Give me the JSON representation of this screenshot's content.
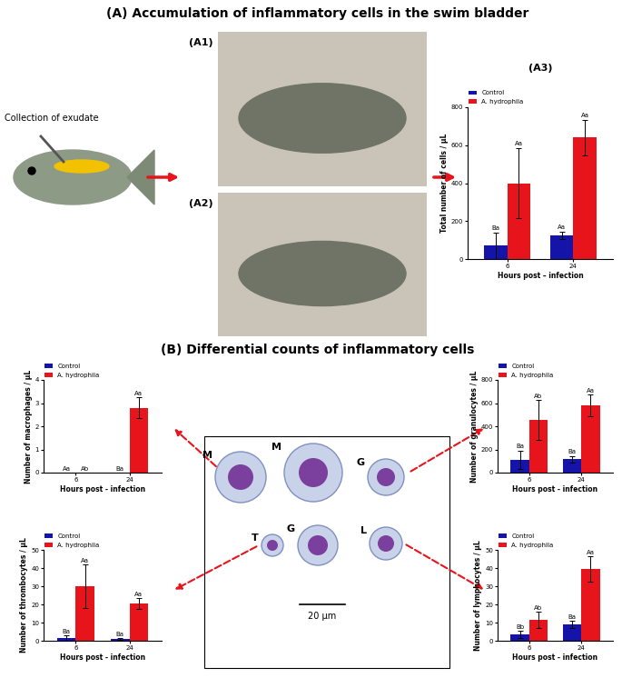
{
  "title_a": "(A) Accumulation of inflammatory cells in the swim bladder",
  "collection_label": "Collection of exudate",
  "photo_labels": [
    "(A1)",
    "(A2)"
  ],
  "title_b": "(B) Differential counts of inflammatory cells",
  "micrograph": {
    "cells": [
      "M",
      "M",
      "G",
      "T",
      "G",
      "L"
    ],
    "scale_bar": "20 µm"
  },
  "chart_data": [
    {
      "type": "bar",
      "panel_label": "(A3)",
      "x_label": "Hours post – infection",
      "y_label": "Total number of cells / µL",
      "categories": [
        "6",
        "24"
      ],
      "ylim": [
        0,
        800
      ],
      "yticks": [
        0,
        200,
        400,
        600,
        800
      ],
      "legend": "top",
      "series": [
        {
          "name": "Control",
          "color": "#1414a8",
          "values": [
            70,
            125
          ],
          "errors": [
            70,
            20
          ],
          "letters": [
            "Ba",
            "Aa"
          ]
        },
        {
          "name": "A. hydrophila",
          "color": "#e8141c",
          "values": [
            400,
            640
          ],
          "errors": [
            185,
            95
          ],
          "letters": [
            "Aa",
            "Aa"
          ]
        }
      ]
    },
    {
      "type": "bar",
      "x_label": "Hours post - infection",
      "y_label": "Number of macrophages / µL",
      "categories": [
        "6",
        "24"
      ],
      "ylim": [
        0,
        4
      ],
      "yticks": [
        0,
        1,
        2,
        3,
        4
      ],
      "legend": "top",
      "series": [
        {
          "name": "Control",
          "color": "#1414a8",
          "values": [
            0,
            0
          ],
          "errors": [
            0,
            0
          ],
          "letters": [
            "Aa",
            "Ba"
          ]
        },
        {
          "name": "A. hydrophila",
          "color": "#e8141c",
          "values": [
            0,
            2.8
          ],
          "errors": [
            0,
            0.45
          ],
          "letters": [
            "Ab",
            "Aa"
          ]
        }
      ]
    },
    {
      "type": "bar",
      "x_label": "Hours post - infection",
      "y_label": "Number of granulocytes / µL",
      "categories": [
        "6",
        "24"
      ],
      "ylim": [
        0,
        800
      ],
      "yticks": [
        0,
        200,
        400,
        600,
        800
      ],
      "legend": "top",
      "series": [
        {
          "name": "Control",
          "color": "#1414a8",
          "values": [
            110,
            115
          ],
          "errors": [
            80,
            30
          ],
          "letters": [
            "Ba",
            "Ba"
          ]
        },
        {
          "name": "A. hydrophila",
          "color": "#e8141c",
          "values": [
            455,
            580
          ],
          "errors": [
            170,
            95
          ],
          "letters": [
            "Ab",
            "Aa"
          ]
        }
      ]
    },
    {
      "type": "bar",
      "x_label": "Hours post - infection",
      "y_label": "Number of thrombocytes / µL",
      "categories": [
        "6",
        "24"
      ],
      "ylim": [
        0,
        50
      ],
      "yticks": [
        0,
        10,
        20,
        30,
        40,
        50
      ],
      "legend": "top",
      "series": [
        {
          "name": "Control",
          "color": "#1414a8",
          "values": [
            1.5,
            1
          ],
          "errors": [
            1.5,
            0.5
          ],
          "letters": [
            "Ba",
            "Ba"
          ]
        },
        {
          "name": "A. hydrophila",
          "color": "#e8141c",
          "values": [
            30,
            20.5
          ],
          "errors": [
            12,
            3
          ],
          "letters": [
            "Aa",
            "Aa"
          ]
        }
      ]
    },
    {
      "type": "bar",
      "x_label": "Hours post - infection",
      "y_label": "Number of lymphocytes / µL",
      "categories": [
        "6",
        "24"
      ],
      "ylim": [
        0,
        50
      ],
      "yticks": [
        0,
        10,
        20,
        30,
        40,
        50
      ],
      "legend": "top",
      "series": [
        {
          "name": "Control",
          "color": "#1414a8",
          "values": [
            3.5,
            9
          ],
          "errors": [
            2,
            2
          ],
          "letters": [
            "Bb",
            "Ba"
          ]
        },
        {
          "name": "A. hydrophila",
          "color": "#e8141c",
          "values": [
            11.5,
            39.5
          ],
          "errors": [
            4.5,
            7
          ],
          "letters": [
            "Ab",
            "Aa"
          ]
        }
      ]
    }
  ]
}
